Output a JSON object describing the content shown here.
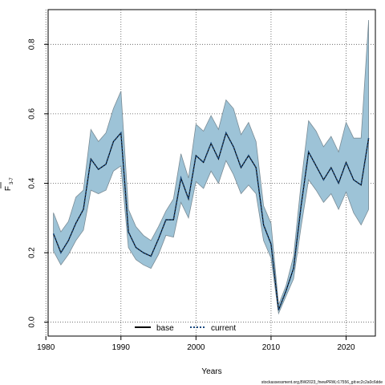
{
  "chart_data": {
    "type": "line",
    "xlabel": "Years",
    "ylabel_main": "F",
    "ylabel_sub": "3-7",
    "xlim": [
      1980.3,
      2023.9
    ],
    "ylim": [
      -0.04,
      0.9
    ],
    "xticks": [
      1980,
      1990,
      2000,
      2010,
      2020
    ],
    "yticks": [
      0.0,
      0.2,
      0.4,
      0.6,
      0.8
    ],
    "ytick_labels": [
      "0.0",
      "0.2",
      "0.4",
      "0.6",
      "0.8"
    ],
    "grid": true,
    "legend_position": "bottom-center",
    "footnote": "stockassessment.org,BW2023_fnewPRW,r17556_git:ec2c2a0c6dde",
    "colors": {
      "band": "#9dc3d7",
      "band_edge": "#7a8c96",
      "current": "#1a4a80",
      "base": "#000000",
      "grid": "#555555"
    },
    "x": [
      1981,
      1982,
      1983,
      1984,
      1985,
      1986,
      1987,
      1988,
      1989,
      1990,
      1991,
      1992,
      1993,
      1994,
      1995,
      1996,
      1997,
      1998,
      1999,
      2000,
      2001,
      2002,
      2003,
      2004,
      2005,
      2006,
      2007,
      2008,
      2009,
      2010,
      2011,
      2012,
      2013,
      2014,
      2015,
      2016,
      2017,
      2018,
      2019,
      2020,
      2021,
      2022,
      2023
    ],
    "series": [
      {
        "name": "base",
        "style": "solid",
        "values": [
          0.255,
          0.2,
          0.235,
          0.285,
          0.325,
          0.47,
          0.44,
          0.455,
          0.52,
          0.545,
          0.26,
          0.215,
          0.2,
          0.19,
          0.24,
          0.295,
          0.295,
          0.415,
          0.355,
          0.48,
          0.46,
          0.515,
          0.47,
          0.545,
          0.505,
          0.445,
          0.48,
          0.445,
          0.28,
          0.225,
          0.035,
          0.09,
          0.155,
          0.335,
          0.49,
          0.45,
          0.41,
          0.445,
          0.4,
          0.46,
          0.41,
          0.395,
          0.53
        ]
      },
      {
        "name": "current",
        "style": "dotted",
        "values": [
          0.255,
          0.2,
          0.235,
          0.285,
          0.325,
          0.47,
          0.44,
          0.455,
          0.52,
          0.545,
          0.26,
          0.215,
          0.2,
          0.19,
          0.24,
          0.295,
          0.295,
          0.415,
          0.355,
          0.48,
          0.46,
          0.515,
          0.47,
          0.545,
          0.505,
          0.445,
          0.48,
          0.445,
          0.28,
          0.225,
          0.035,
          0.09,
          0.155,
          0.335,
          0.49,
          0.45,
          0.41,
          0.445,
          0.4,
          0.46,
          0.41,
          0.395,
          0.53
        ]
      }
    ],
    "band_upper": [
      0.315,
      0.26,
      0.29,
      0.36,
      0.38,
      0.555,
      0.52,
      0.545,
      0.615,
      0.665,
      0.325,
      0.275,
      0.25,
      0.235,
      0.275,
      0.32,
      0.355,
      0.485,
      0.415,
      0.57,
      0.55,
      0.595,
      0.555,
      0.64,
      0.615,
      0.54,
      0.575,
      0.52,
      0.335,
      0.285,
      0.05,
      0.105,
      0.19,
      0.4,
      0.58,
      0.55,
      0.505,
      0.535,
      0.49,
      0.575,
      0.53,
      0.53,
      0.87
    ],
    "band_lower": [
      0.205,
      0.165,
      0.195,
      0.235,
      0.265,
      0.38,
      0.37,
      0.38,
      0.435,
      0.45,
      0.215,
      0.18,
      0.165,
      0.155,
      0.195,
      0.25,
      0.245,
      0.345,
      0.3,
      0.405,
      0.385,
      0.435,
      0.4,
      0.465,
      0.425,
      0.37,
      0.395,
      0.37,
      0.235,
      0.185,
      0.025,
      0.075,
      0.125,
      0.275,
      0.41,
      0.38,
      0.345,
      0.37,
      0.325,
      0.375,
      0.315,
      0.28,
      0.325
    ]
  }
}
